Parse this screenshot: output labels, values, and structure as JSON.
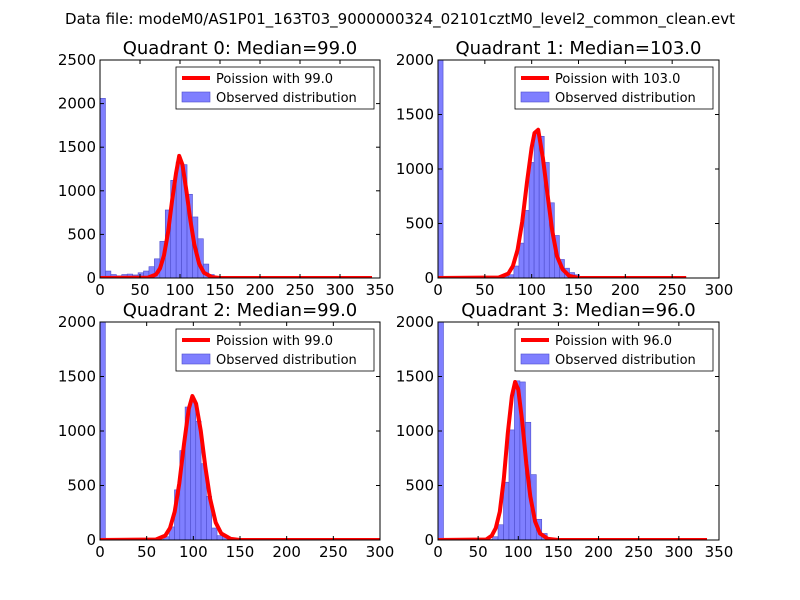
{
  "figure": {
    "suptitle": "Data file: modeM0/AS1P01_163T03_9000000324_02101cztM0_level2_common_clean.evt"
  },
  "colors": {
    "fit_line": "#ff0000",
    "hist_fill": "#7f7fff",
    "hist_edge": "#4d4dcc",
    "axes": "#000000"
  },
  "chart_data": [
    {
      "type": "bar",
      "title": "Quadrant 0: Median=99.0",
      "xlim": [
        0,
        350
      ],
      "ylim": [
        0,
        2500
      ],
      "xticks": [
        0,
        50,
        100,
        150,
        200,
        250,
        300,
        350
      ],
      "yticks": [
        0,
        500,
        1000,
        1500,
        2000,
        2500
      ],
      "legend": {
        "placement": "top-right",
        "entries": [
          "Poission with 99.0",
          "Observed distribution"
        ]
      },
      "bin_width": 6.8,
      "hist": {
        "x": [
          0,
          6.8,
          13.6,
          20.4,
          27.2,
          34,
          40.8,
          47.6,
          54.4,
          61.2,
          68,
          74.8,
          81.6,
          88.4,
          95.2,
          102,
          108.8,
          115.6,
          122.4,
          129.2,
          136,
          142.8,
          149.6,
          156.4,
          163.2,
          170,
          176.8,
          183.6,
          190.4,
          197.2,
          204,
          210.8,
          217.6,
          224.4,
          231.2,
          238,
          244.8,
          251.6,
          258.4,
          265.2,
          272,
          278.8,
          285.6,
          292.4,
          299.2,
          306,
          312.8,
          319.6,
          326.4
        ],
        "values": [
          2060,
          80,
          40,
          25,
          40,
          45,
          35,
          60,
          80,
          130,
          220,
          420,
          780,
          1120,
          1330,
          1300,
          960,
          700,
          450,
          160,
          40,
          15,
          8,
          5,
          10,
          5,
          5,
          5,
          5,
          8,
          5,
          5,
          5,
          5,
          5,
          5,
          5,
          5,
          5,
          5,
          5,
          5,
          5,
          5,
          5,
          5,
          5,
          5,
          5
        ]
      },
      "fit": {
        "label": "Poission with 99.0",
        "x": [
          0,
          60,
          70,
          75,
          80,
          85,
          90,
          95,
          99,
          103,
          108,
          113,
          118,
          124,
          130,
          140,
          150,
          340
        ],
        "y": [
          0,
          5,
          40,
          110,
          260,
          520,
          880,
          1200,
          1400,
          1300,
          1000,
          660,
          380,
          160,
          60,
          10,
          0,
          0
        ]
      }
    },
    {
      "type": "bar",
      "title": "Quadrant 1: Median=103.0",
      "xlim": [
        0,
        300
      ],
      "ylim": [
        0,
        2000
      ],
      "xticks": [
        0,
        50,
        100,
        150,
        200,
        250,
        300
      ],
      "yticks": [
        0,
        500,
        1000,
        1500,
        2000
      ],
      "legend": {
        "placement": "top-right",
        "entries": [
          "Poission with 103.0",
          "Observed distribution"
        ]
      },
      "bin_width": 5.4,
      "hist": {
        "x": [
          0,
          5.4,
          10.8,
          16.2,
          21.6,
          27,
          32.4,
          37.8,
          43.2,
          48.6,
          54,
          59.4,
          64.8,
          70.2,
          75.6,
          81,
          86.4,
          91.8,
          97.2,
          102.6,
          108,
          113.4,
          118.8,
          124.2,
          129.6,
          135,
          140.4,
          145.8,
          151.2,
          156.6,
          162,
          167.4,
          172.8,
          178.2,
          183.6,
          189,
          194.4,
          199.8,
          205.2,
          210.6,
          216,
          221.4,
          226.8,
          232.2,
          237.6,
          243,
          248.4,
          253.8,
          259.2
        ],
        "values": [
          2000,
          5,
          5,
          5,
          5,
          5,
          5,
          5,
          5,
          5,
          5,
          5,
          10,
          15,
          30,
          110,
          320,
          620,
          1060,
          1330,
          1300,
          1060,
          690,
          390,
          170,
          90,
          50,
          30,
          15,
          10,
          5,
          5,
          5,
          5,
          5,
          5,
          5,
          5,
          10,
          5,
          5,
          5,
          5,
          5,
          5,
          5,
          5,
          5,
          5
        ]
      },
      "fit": {
        "label": "Poission with 103.0",
        "x": [
          0,
          65,
          75,
          80,
          85,
          90,
          95,
          100,
          103,
          107,
          112,
          117,
          122,
          127,
          133,
          140,
          150,
          265
        ],
        "y": [
          0,
          5,
          40,
          110,
          260,
          520,
          880,
          1200,
          1330,
          1360,
          1100,
          760,
          430,
          200,
          80,
          20,
          0,
          0
        ]
      }
    },
    {
      "type": "bar",
      "title": "Quadrant 2: Median=99.0",
      "xlim": [
        0,
        300
      ],
      "ylim": [
        0,
        2000
      ],
      "xticks": [
        0,
        50,
        100,
        150,
        200,
        250,
        300
      ],
      "yticks": [
        0,
        500,
        1000,
        1500,
        2000
      ],
      "legend": {
        "placement": "top-right",
        "entries": [
          "Poission with 99.0",
          "Observed distribution"
        ]
      },
      "bin_width": 5.7,
      "hist": {
        "x": [
          0,
          5.7,
          11.4,
          17.1,
          22.8,
          28.5,
          34.2,
          39.9,
          45.6,
          51.3,
          57,
          62.7,
          68.4,
          74.1,
          79.8,
          85.5,
          91.2,
          96.9,
          102.6,
          108.3,
          114,
          119.7,
          125.4,
          131.1,
          136.8,
          142.5,
          148.2,
          153.9,
          159.6,
          165.3,
          171,
          176.7,
          182.4,
          188.1,
          193.8,
          199.5,
          205.2,
          210.9,
          216.6,
          222.3,
          228,
          233.7,
          239.4,
          245.1,
          250.8,
          256.5,
          262.2,
          267.9,
          273.6
        ],
        "values": [
          2000,
          5,
          5,
          5,
          5,
          5,
          5,
          5,
          5,
          5,
          5,
          5,
          30,
          120,
          460,
          820,
          1220,
          1260,
          1090,
          700,
          400,
          110,
          40,
          30,
          15,
          8,
          5,
          5,
          5,
          5,
          5,
          5,
          5,
          5,
          5,
          5,
          5,
          5,
          5,
          5,
          5,
          5,
          5,
          5,
          5,
          5,
          5,
          5,
          5
        ]
      },
      "fit": {
        "label": "Poission with 99.0",
        "x": [
          0,
          60,
          70,
          75,
          80,
          85,
          90,
          95,
          99,
          103,
          108,
          113,
          118,
          124,
          130,
          140,
          150,
          300
        ],
        "y": [
          0,
          5,
          40,
          110,
          260,
          520,
          880,
          1200,
          1320,
          1250,
          1000,
          660,
          380,
          160,
          60,
          10,
          0,
          0
        ]
      }
    },
    {
      "type": "bar",
      "title": "Quadrant 3: Median=96.0",
      "xlim": [
        0,
        350
      ],
      "ylim": [
        0,
        2000
      ],
      "xticks": [
        0,
        50,
        100,
        150,
        200,
        250,
        300,
        350
      ],
      "yticks": [
        0,
        500,
        1000,
        1500,
        2000
      ],
      "legend": {
        "placement": "top-right",
        "entries": [
          "Poission with 96.0",
          "Observed distribution"
        ]
      },
      "bin_width": 6.8,
      "hist": {
        "x": [
          0,
          6.8,
          13.6,
          20.4,
          27.2,
          34,
          40.8,
          47.6,
          54.4,
          61.2,
          68,
          74.8,
          81.6,
          88.4,
          95.2,
          102,
          108.8,
          115.6,
          122.4,
          129.2,
          136,
          142.8,
          149.6,
          156.4,
          163.2,
          170,
          176.8,
          183.6,
          190.4,
          197.2,
          204,
          210.8,
          217.6,
          224.4,
          231.2,
          238,
          244.8,
          251.6,
          258.4,
          265.2,
          272,
          278.8,
          285.6,
          292.4,
          299.2,
          306,
          312.8,
          319.6,
          326.4
        ],
        "values": [
          2000,
          5,
          5,
          5,
          5,
          5,
          5,
          5,
          5,
          5,
          30,
          140,
          530,
          1010,
          1460,
          1450,
          1080,
          600,
          190,
          60,
          20,
          10,
          5,
          5,
          5,
          5,
          5,
          5,
          5,
          5,
          5,
          5,
          5,
          5,
          5,
          10,
          5,
          5,
          5,
          5,
          5,
          5,
          5,
          5,
          5,
          5,
          5,
          5,
          5
        ]
      },
      "fit": {
        "label": "Poission with 96.0",
        "x": [
          0,
          60,
          67,
          72,
          77,
          82,
          87,
          92,
          96,
          100,
          105,
          110,
          115,
          121,
          127,
          137,
          150,
          335
        ],
        "y": [
          0,
          5,
          40,
          110,
          260,
          560,
          980,
          1320,
          1450,
          1380,
          1080,
          700,
          400,
          170,
          60,
          10,
          0,
          0
        ]
      }
    }
  ]
}
